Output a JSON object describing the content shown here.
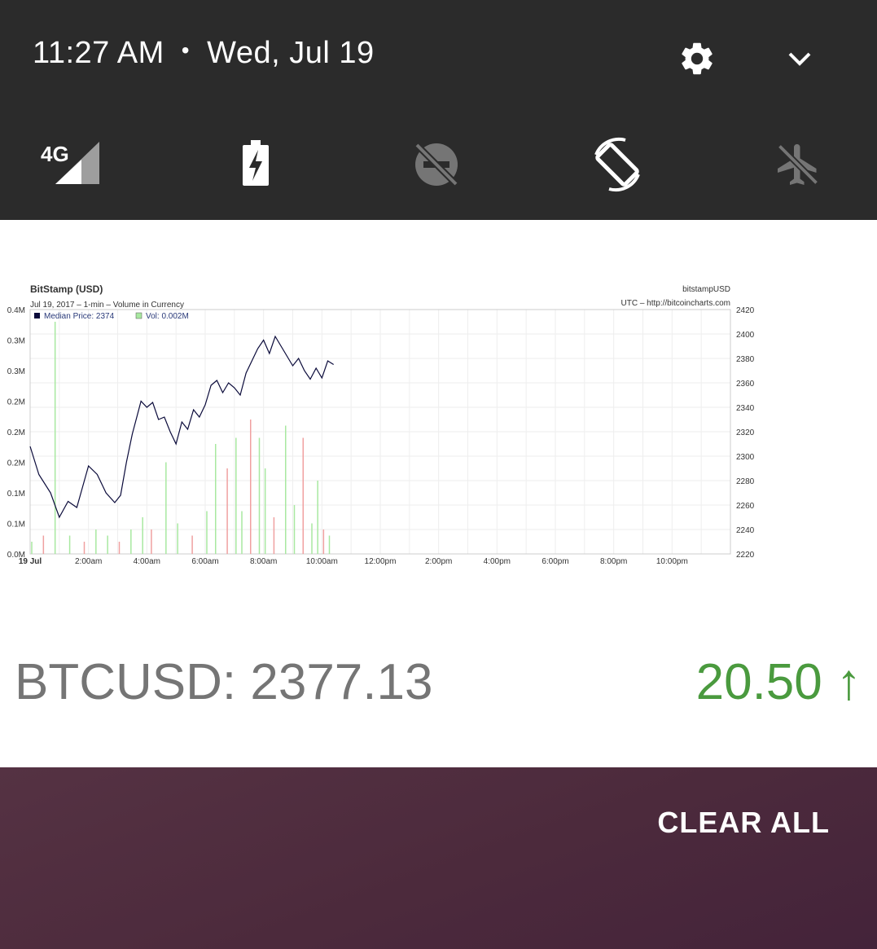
{
  "status_shade": {
    "time": "11:27 AM",
    "date": "Wed, Jul 19",
    "settings_icon": "gear-icon",
    "expand_icon": "chevron-down-icon",
    "quick_settings": [
      {
        "id": "mobile-data",
        "icon": "signal-4g-icon",
        "badge": "4G",
        "active": true
      },
      {
        "id": "battery",
        "icon": "battery-charging-icon",
        "active": true
      },
      {
        "id": "dnd",
        "icon": "do-not-disturb-off-icon",
        "active": false
      },
      {
        "id": "auto-rotate",
        "icon": "screen-rotation-icon",
        "active": true
      },
      {
        "id": "airplane",
        "icon": "airplane-icon",
        "active": false
      }
    ]
  },
  "notification": {
    "ticker_label": "BTCUSD: 2377.13",
    "ticker_change": "20.50 ↑",
    "change_color": "#4a9a3e",
    "label_color": "#757575"
  },
  "chart_data": {
    "type": "line",
    "title": "BitStamp (USD)",
    "subtitle": "Jul 19, 2017 – 1-min – Volume in Currency",
    "symbol": "bitstampUSD",
    "source": "UTC – http://bitcoincharts.com",
    "legend": [
      {
        "name": "Median Price: 2374",
        "color": "#0a0a3a"
      },
      {
        "name": "Vol: 0.002M",
        "color": "#a8e8a0"
      }
    ],
    "x_ticks": [
      "19 Jul",
      "2:00am",
      "4:00am",
      "6:00am",
      "8:00am",
      "10:00am",
      "12:00pm",
      "2:00pm",
      "4:00pm",
      "6:00pm",
      "8:00pm",
      "10:00pm"
    ],
    "x_range_hours": [
      0,
      24
    ],
    "y_left_ticks": [
      "0.0M",
      "0.1M",
      "0.1M",
      "0.2M",
      "0.2M",
      "0.2M",
      "0.3M",
      "0.3M",
      "0.4M"
    ],
    "y_right_ticks": [
      "2220",
      "2240",
      "2260",
      "2280",
      "2300",
      "2320",
      "2340",
      "2360",
      "2380",
      "2400",
      "2420"
    ],
    "y_right_range": [
      2220,
      2420
    ],
    "grid": true,
    "series": [
      {
        "name": "Median Price: 2374",
        "x": [
          0.0,
          0.3,
          0.7,
          1.0,
          1.3,
          1.6,
          1.8,
          2.0,
          2.3,
          2.6,
          2.9,
          3.1,
          3.3,
          3.5,
          3.8,
          4.0,
          4.2,
          4.4,
          4.6,
          4.8,
          5.0,
          5.2,
          5.4,
          5.6,
          5.8,
          6.0,
          6.2,
          6.4,
          6.6,
          6.8,
          7.0,
          7.2,
          7.4,
          7.6,
          7.8,
          8.0,
          8.2,
          8.4,
          8.6,
          8.8,
          9.0,
          9.2,
          9.4,
          9.6,
          9.8,
          10.0,
          10.2,
          10.4
        ],
        "values": [
          2308,
          2285,
          2270,
          2250,
          2263,
          2258,
          2275,
          2292,
          2285,
          2270,
          2262,
          2268,
          2295,
          2318,
          2345,
          2340,
          2344,
          2330,
          2332,
          2320,
          2310,
          2328,
          2322,
          2338,
          2332,
          2342,
          2358,
          2362,
          2352,
          2360,
          2356,
          2350,
          2368,
          2378,
          2388,
          2395,
          2384,
          2398,
          2390,
          2382,
          2374,
          2380,
          2370,
          2363,
          2372,
          2364,
          2378,
          2375
        ]
      },
      {
        "name": "Vol: 0.002M",
        "x": [
          0.0,
          0.4,
          0.8,
          1.3,
          1.8,
          2.2,
          2.6,
          3.0,
          3.4,
          3.8,
          4.1,
          4.6,
          5.0,
          5.5,
          6.0,
          6.3,
          6.7,
          7.0,
          7.2,
          7.5,
          7.8,
          8.0,
          8.3,
          8.7,
          9.0,
          9.3,
          9.6,
          9.8,
          10.0,
          10.2
        ],
        "values": [
          0.02,
          0.03,
          0.38,
          0.03,
          0.02,
          0.04,
          0.03,
          0.02,
          0.04,
          0.06,
          0.04,
          0.15,
          0.05,
          0.03,
          0.07,
          0.18,
          0.14,
          0.19,
          0.07,
          0.22,
          0.19,
          0.14,
          0.06,
          0.21,
          0.08,
          0.19,
          0.05,
          0.12,
          0.04,
          0.03
        ]
      }
    ]
  },
  "actions": {
    "clear_all": "CLEAR ALL"
  }
}
